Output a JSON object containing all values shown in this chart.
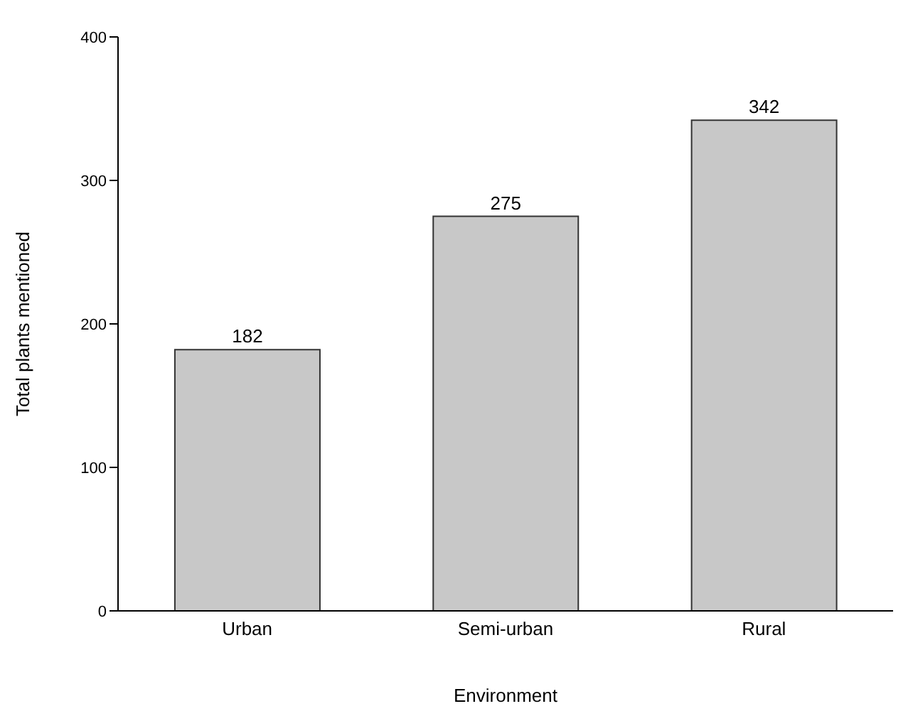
{
  "chart_data": {
    "type": "bar",
    "xlabel": "Environment",
    "ylabel": "Total plants mentioned",
    "categories": [
      "Urban",
      "Semi-urban",
      "Rural"
    ],
    "values": [
      182,
      275,
      342
    ],
    "color": "#c8c8c8",
    "ylim": [
      0,
      400
    ],
    "yticks": [
      0,
      100,
      200,
      300,
      400
    ],
    "grid": false,
    "data_labels": true
  }
}
